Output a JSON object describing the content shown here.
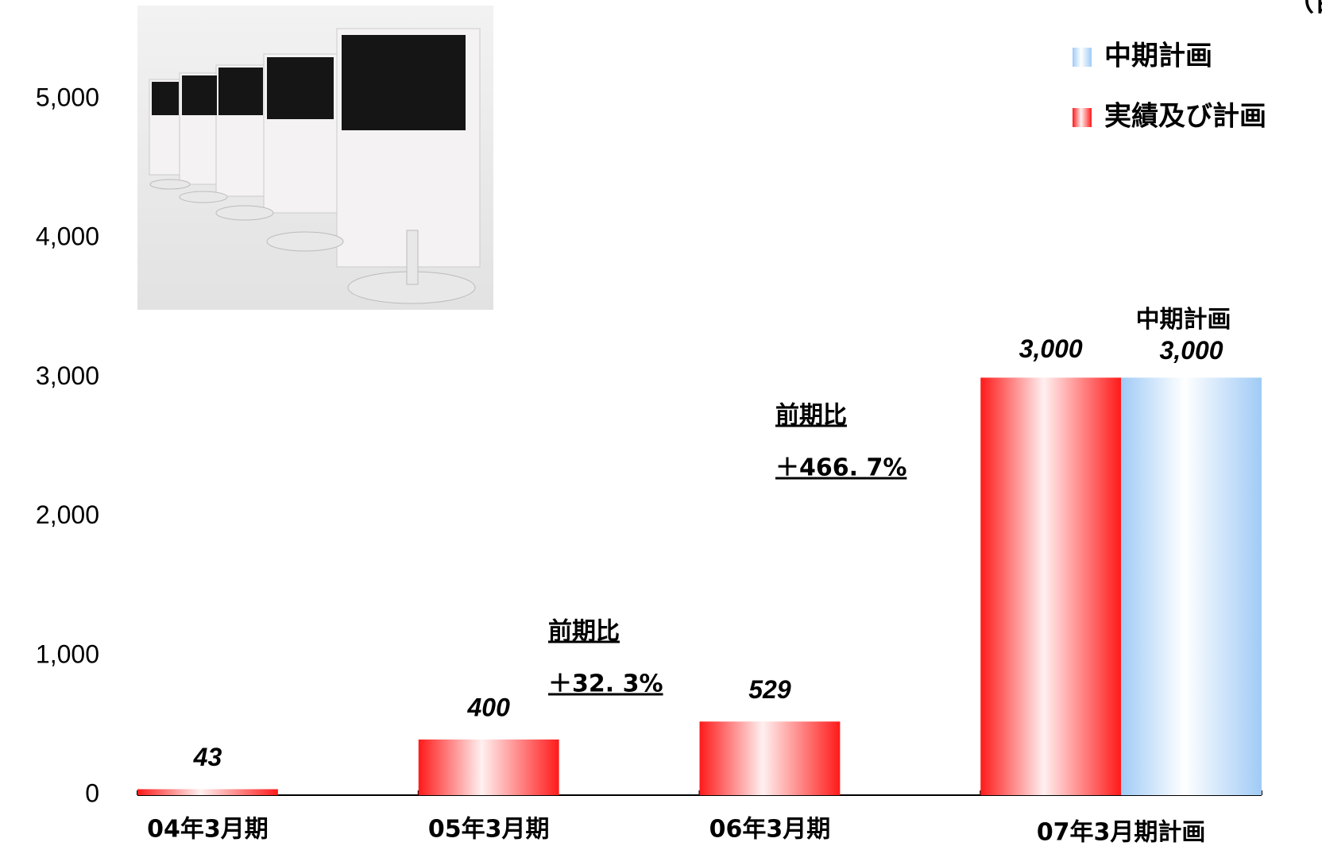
{
  "chart_data": {
    "type": "bar",
    "unit_note": "（百",
    "categories": [
      "04年3月期",
      "05年3月期",
      "06年3月期",
      "07年3月期計画"
    ],
    "series": [
      {
        "name": "実績及び計画",
        "color": "#ff2020",
        "values": [
          43,
          400,
          529,
          3000
        ],
        "value_labels": [
          "43",
          "400",
          "529",
          "3,000"
        ]
      },
      {
        "name": "中期計画",
        "color": "#a8d0f8",
        "values": [
          null,
          null,
          null,
          3000
        ],
        "value_labels": [
          null,
          null,
          null,
          "3,000"
        ]
      }
    ],
    "ylim": [
      0,
      5000
    ],
    "yticks": [
      0,
      {
        "value": 1000,
        "label": "1,000"
      },
      {
        "value": 2000,
        "label": "2,000"
      },
      {
        "value": 3000,
        "label": "3,000"
      },
      {
        "value": 4000,
        "label": "4,000"
      },
      {
        "value": 5000,
        "label": "5,000"
      }
    ],
    "annotations": [
      {
        "text": "前期比",
        "value_text": "＋32. 3%"
      },
      {
        "text": "前期比",
        "value_text": "＋466. 7%"
      }
    ]
  }
}
